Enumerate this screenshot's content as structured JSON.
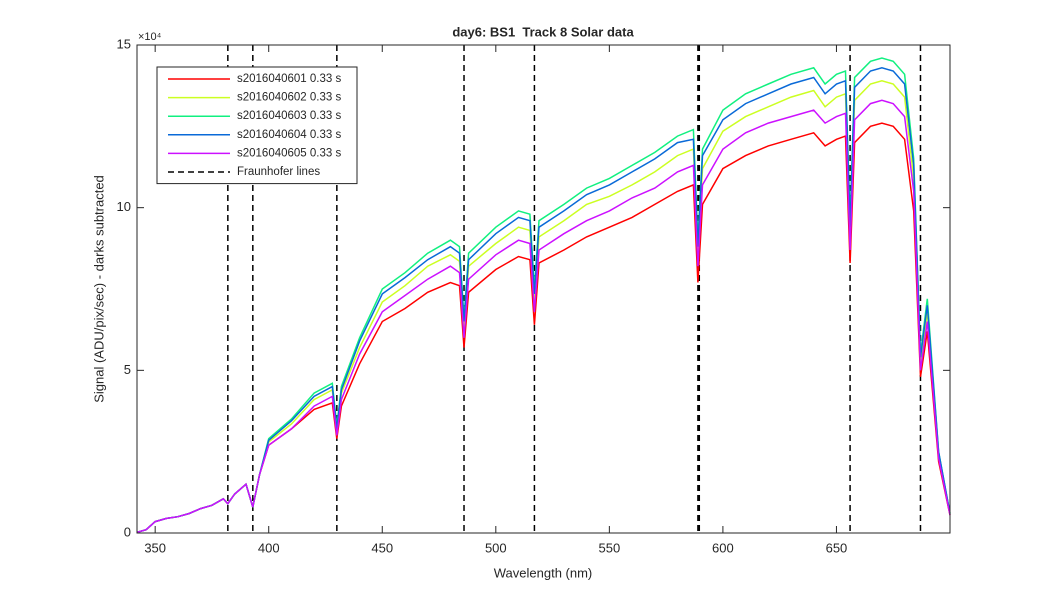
{
  "chart_data": {
    "type": "line",
    "title": "day6: BS1  Track 8 Solar data",
    "xlabel": "Wavelength (nm)",
    "ylabel": "Signal (ADU/pix/sec) - darks subtracted",
    "y_scale_label": "×10⁴",
    "x": [
      342,
      346,
      350,
      355,
      360,
      365,
      370,
      375,
      380,
      382,
      385,
      390,
      393,
      396,
      400,
      410,
      420,
      428,
      430,
      432,
      440,
      450,
      460,
      470,
      480,
      484,
      486,
      488,
      500,
      510,
      515,
      517,
      519,
      530,
      540,
      550,
      560,
      570,
      580,
      587,
      589,
      591,
      600,
      610,
      620,
      630,
      640,
      645,
      650,
      654,
      656,
      658,
      665,
      670,
      675,
      680,
      684,
      687,
      690,
      695,
      700
    ],
    "series": [
      {
        "name": "s2016040601 0.33 s",
        "color": "#ff0000",
        "values": [
          0.02,
          0.1,
          0.35,
          0.45,
          0.5,
          0.6,
          0.75,
          0.85,
          1.05,
          0.9,
          1.2,
          1.5,
          0.8,
          1.8,
          2.7,
          3.2,
          3.8,
          4.0,
          2.9,
          3.9,
          5.2,
          6.5,
          6.9,
          7.4,
          7.7,
          7.6,
          5.7,
          7.4,
          8.1,
          8.5,
          8.4,
          6.4,
          8.3,
          8.7,
          9.1,
          9.4,
          9.7,
          10.1,
          10.5,
          10.7,
          7.7,
          10.1,
          11.2,
          11.6,
          11.9,
          12.1,
          12.3,
          11.9,
          12.1,
          12.2,
          8.3,
          12.0,
          12.5,
          12.6,
          12.5,
          12.1,
          9.9,
          4.8,
          6.2,
          2.2,
          0.55
        ]
      },
      {
        "name": "s2016040602 0.33 s",
        "color": "#ccff22",
        "values": [
          0.02,
          0.1,
          0.35,
          0.45,
          0.5,
          0.6,
          0.75,
          0.85,
          1.05,
          0.9,
          1.2,
          1.5,
          0.8,
          1.8,
          2.8,
          3.35,
          4.1,
          4.4,
          3.15,
          4.3,
          5.7,
          7.1,
          7.6,
          8.2,
          8.55,
          8.35,
          6.3,
          8.2,
          8.9,
          9.4,
          9.3,
          7.1,
          9.1,
          9.6,
          10.1,
          10.35,
          10.7,
          11.1,
          11.6,
          11.8,
          8.6,
          11.2,
          12.35,
          12.8,
          13.1,
          13.4,
          13.6,
          13.1,
          13.4,
          13.5,
          9.1,
          13.3,
          13.8,
          13.9,
          13.8,
          13.4,
          10.9,
          5.2,
          6.8,
          2.4,
          0.6
        ]
      },
      {
        "name": "s2016040603 0.33 s",
        "color": "#11f080",
        "values": [
          0.02,
          0.1,
          0.35,
          0.45,
          0.5,
          0.6,
          0.75,
          0.85,
          1.05,
          0.9,
          1.2,
          1.5,
          0.8,
          1.8,
          2.9,
          3.5,
          4.3,
          4.6,
          3.3,
          4.5,
          6.0,
          7.5,
          8.0,
          8.6,
          9.0,
          8.8,
          6.6,
          8.6,
          9.4,
          9.9,
          9.8,
          7.5,
          9.6,
          10.1,
          10.6,
          10.9,
          11.3,
          11.7,
          12.2,
          12.4,
          9.0,
          11.8,
          13.0,
          13.5,
          13.8,
          14.1,
          14.3,
          13.8,
          14.1,
          14.2,
          9.6,
          14.0,
          14.5,
          14.6,
          14.5,
          14.1,
          11.5,
          5.5,
          7.2,
          2.5,
          0.6
        ]
      },
      {
        "name": "s2016040604 0.33 s",
        "color": "#0a6ad8",
        "values": [
          0.02,
          0.1,
          0.35,
          0.45,
          0.5,
          0.6,
          0.75,
          0.85,
          1.05,
          0.9,
          1.2,
          1.5,
          0.8,
          1.8,
          2.85,
          3.45,
          4.2,
          4.5,
          3.2,
          4.4,
          5.9,
          7.35,
          7.85,
          8.4,
          8.8,
          8.6,
          6.5,
          8.4,
          9.2,
          9.7,
          9.6,
          7.35,
          9.4,
          9.9,
          10.4,
          10.7,
          11.1,
          11.5,
          12.0,
          12.1,
          8.8,
          11.6,
          12.7,
          13.2,
          13.5,
          13.8,
          14.0,
          13.5,
          13.8,
          13.9,
          9.4,
          13.7,
          14.2,
          14.3,
          14.2,
          13.8,
          11.3,
          5.4,
          7.0,
          2.5,
          0.6
        ]
      },
      {
        "name": "s2016040605 0.33 s",
        "color": "#cc11ff",
        "values": [
          0.02,
          0.1,
          0.35,
          0.45,
          0.5,
          0.6,
          0.75,
          0.85,
          1.05,
          0.9,
          1.2,
          1.5,
          0.8,
          1.8,
          2.7,
          3.2,
          3.9,
          4.2,
          3.0,
          4.1,
          5.5,
          6.8,
          7.3,
          7.8,
          8.2,
          8.0,
          6.0,
          7.8,
          8.55,
          9.0,
          8.9,
          6.8,
          8.7,
          9.2,
          9.6,
          9.9,
          10.3,
          10.6,
          11.1,
          11.3,
          8.2,
          10.7,
          11.8,
          12.3,
          12.6,
          12.8,
          13.0,
          12.6,
          12.8,
          12.9,
          8.7,
          12.7,
          13.2,
          13.3,
          13.2,
          12.8,
          10.5,
          5.0,
          6.5,
          2.3,
          0.55
        ]
      }
    ],
    "vlines": {
      "name": "Fraunhofer lines",
      "color": "#000000",
      "values": [
        382,
        393,
        430,
        486,
        517,
        589,
        589.6,
        656,
        687
      ]
    },
    "xlim": [
      342,
      700
    ],
    "xticks": [
      350,
      400,
      450,
      500,
      550,
      600,
      650
    ],
    "ylim": [
      0,
      15
    ],
    "yticks": [
      0,
      5,
      10,
      15
    ],
    "legend": "upper left"
  }
}
